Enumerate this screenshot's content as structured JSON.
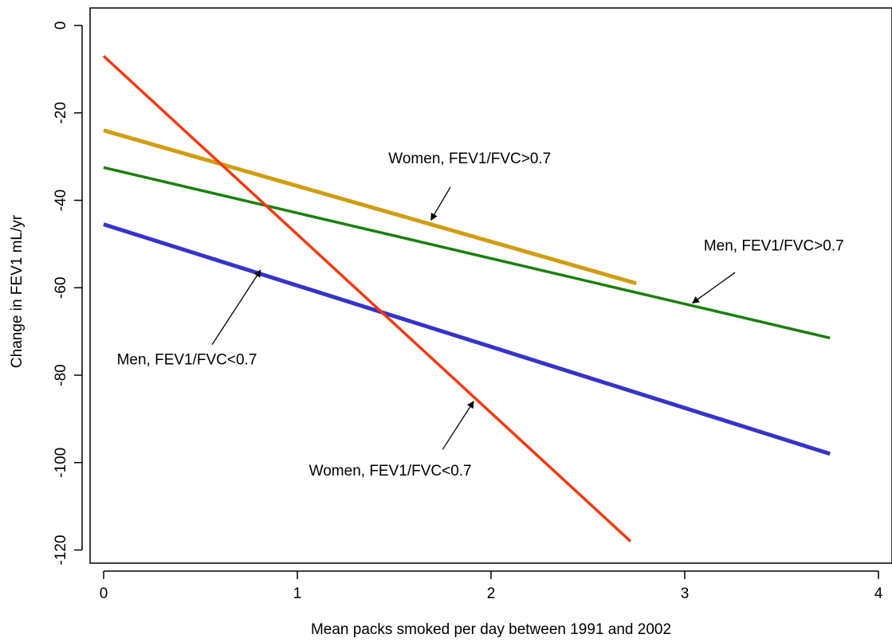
{
  "chart_data": {
    "type": "line",
    "title": "",
    "xlabel": "Mean packs smoked per day between 1991 and 2002",
    "ylabel": "Change in FEV1 mL/yr",
    "xlim": [
      -0.07,
      4.07
    ],
    "ylim": [
      -123,
      4
    ],
    "xticks": [
      0,
      1,
      2,
      3,
      4
    ],
    "xtick_labels": [
      "0",
      "1",
      "2",
      "3",
      "4"
    ],
    "yticks": [
      0,
      -20,
      -40,
      -60,
      -80,
      -100,
      -120
    ],
    "ytick_labels": [
      "0",
      "-20",
      "-40",
      "-60",
      "-80",
      "-100",
      "-120"
    ],
    "grid": false,
    "legend": "none",
    "series": [
      {
        "name": "Women, FEV1/FVC>0.7",
        "color": "#D19C10",
        "x": [
          0,
          2.75
        ],
        "y": [
          -24,
          -59
        ]
      },
      {
        "name": "Men, FEV1/FVC>0.7",
        "color": "#1A7F0E",
        "x": [
          0,
          3.75
        ],
        "y": [
          -32.5,
          -71.5
        ]
      },
      {
        "name": "Men, FEV1/FVC<0.7",
        "color": "#3633C8",
        "x": [
          0,
          3.75
        ],
        "y": [
          -45.5,
          -98
        ]
      },
      {
        "name": "Women, FEV1/FVC<0.7",
        "color": "#F23A0F",
        "x": [
          0,
          2.72
        ],
        "y": [
          -7,
          -118
        ]
      }
    ],
    "annotations": [
      {
        "text": "Women, FEV1/FVC>0.7",
        "series": 0,
        "text_x": 1.89,
        "text_y": -31.5,
        "text_anchor": "middle",
        "arrow_from": [
          1.79,
          -37
        ],
        "arrow_to": [
          1.69,
          -44.5
        ]
      },
      {
        "text": "Men, FEV1/FVC>0.7",
        "series": 1,
        "text_x": 3.46,
        "text_y": -51.5,
        "text_anchor": "middle",
        "arrow_from": [
          3.26,
          -56.5
        ],
        "arrow_to": [
          3.04,
          -63.5
        ]
      },
      {
        "text": "Men, FEV1/FVC<0.7",
        "series": 2,
        "text_x": 0.43,
        "text_y": -77.5,
        "text_anchor": "middle",
        "arrow_from": [
          0.56,
          -73
        ],
        "arrow_to": [
          0.81,
          -56
        ]
      },
      {
        "text": "Women, FEV1/FVC<0.7",
        "series": 3,
        "text_x": 1.48,
        "text_y": -103,
        "text_anchor": "middle",
        "arrow_from": [
          1.75,
          -97
        ],
        "arrow_to": [
          1.91,
          -86
        ]
      }
    ]
  }
}
